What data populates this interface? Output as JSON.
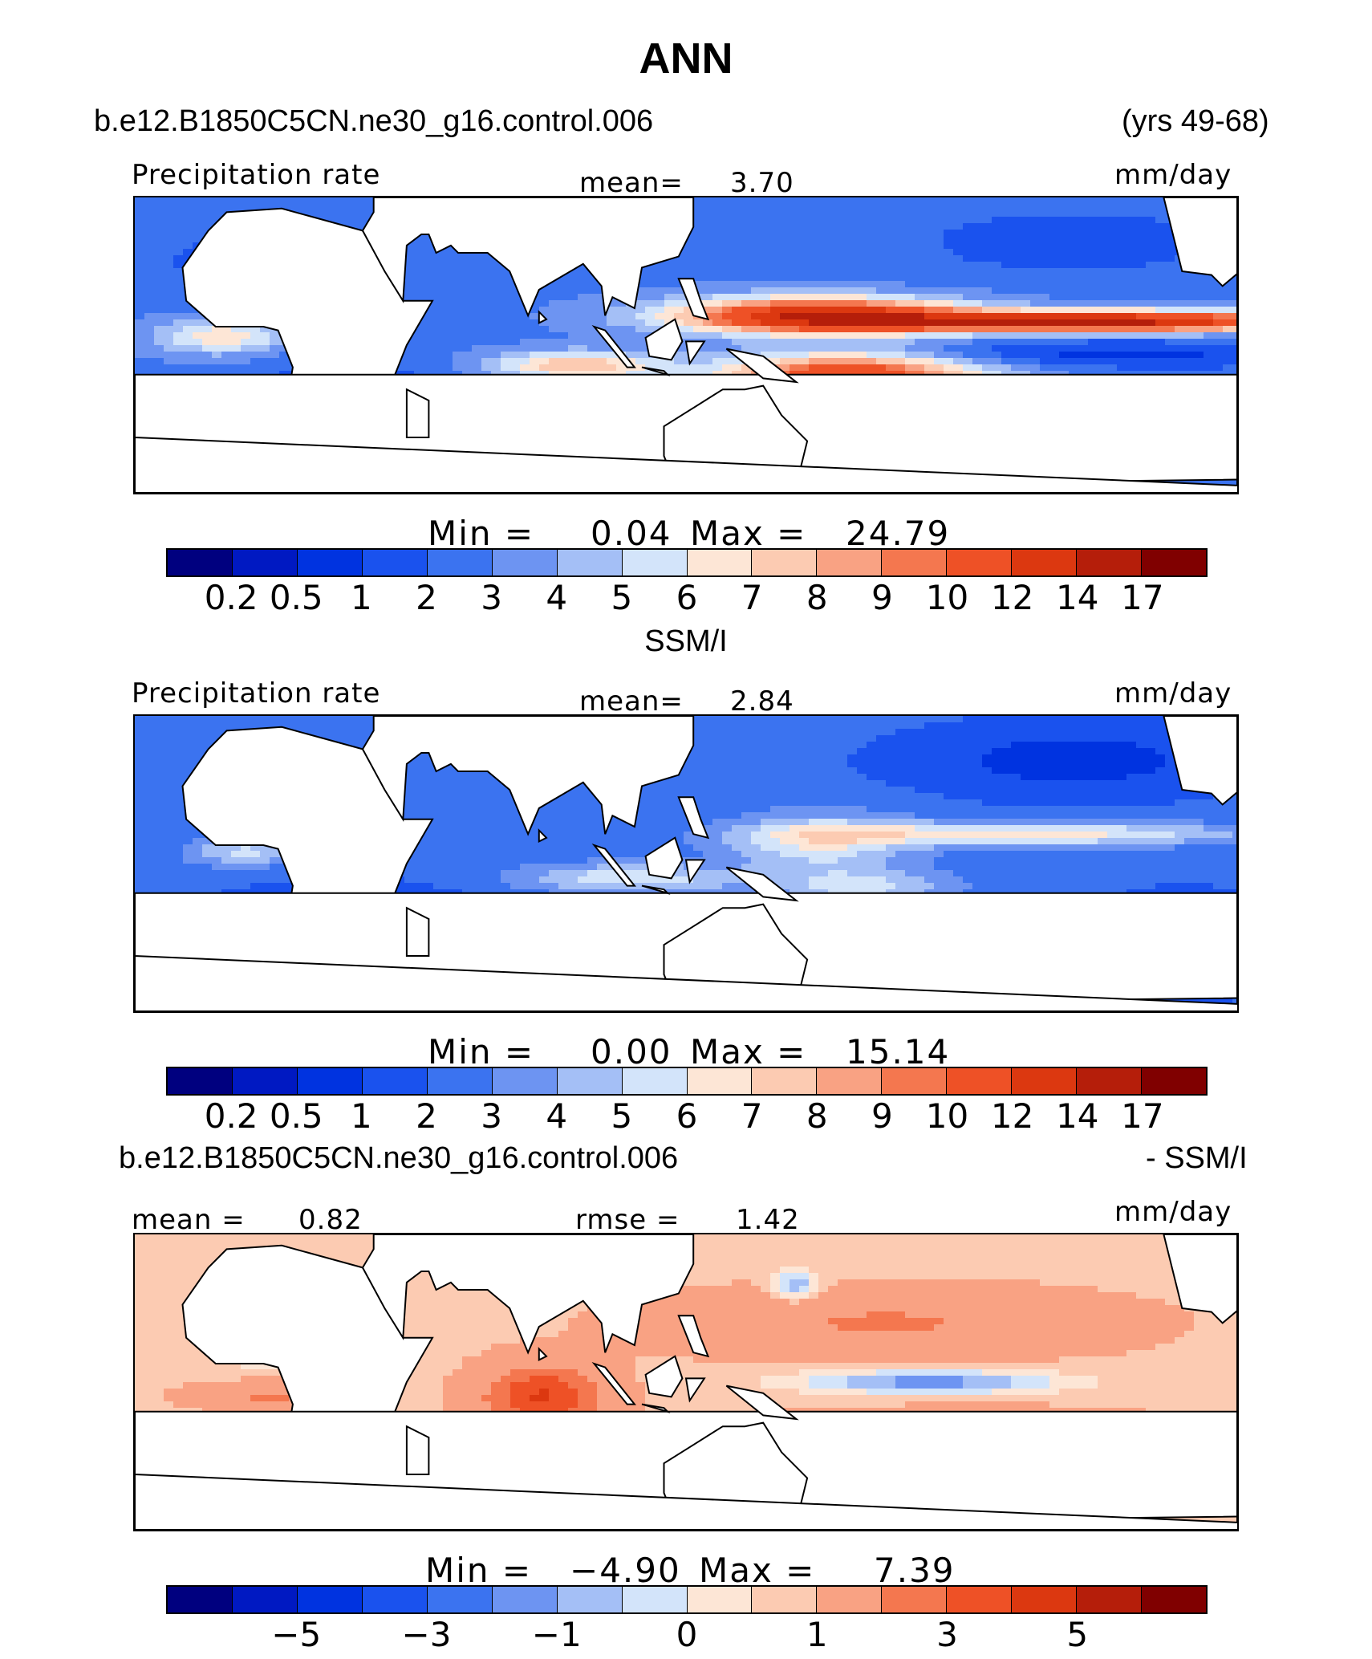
{
  "title": "ANN",
  "case_name": "b.e12.B1850C5CN.ne30_g16.control.006",
  "years": "(yrs 49-68)",
  "diff_case": "b.e12.B1850C5CN.ne30_g16.control.006",
  "diff_suffix": "- SSM/I",
  "obs_name": "SSM/I",
  "palette": [
    "#00007f",
    "#0019c2",
    "#0033e0",
    "#1a52ee",
    "#3b73f0",
    "#6d94f2",
    "#a4bff6",
    "#d3e4fa",
    "#fde6d6",
    "#fccbb2",
    "#f9a283",
    "#f4774f",
    "#ee5126",
    "#dc3810",
    "#b51e0a",
    "#800000"
  ],
  "chart_data": [
    {
      "type": "heatmap",
      "panel": "model",
      "variable": "Precipitation rate",
      "units": "mm/day",
      "mean_label": "mean=",
      "mean": "3.70",
      "min_label": "Min =",
      "min": "0.04",
      "max_label": "Max =",
      "max": "24.79",
      "levels": [
        "0.2",
        "0.5",
        "1",
        "2",
        "3",
        "4",
        "5",
        "6",
        "7",
        "8",
        "9",
        "10",
        "12",
        "14",
        "17"
      ]
    },
    {
      "type": "heatmap",
      "panel": "observations",
      "variable": "Precipitation rate",
      "units": "mm/day",
      "mean_label": "mean=",
      "mean": "2.84",
      "min_label": "Min =",
      "min": "0.00",
      "max_label": "Max =",
      "max": "15.14",
      "levels": [
        "0.2",
        "0.5",
        "1",
        "2",
        "3",
        "4",
        "5",
        "6",
        "7",
        "8",
        "9",
        "10",
        "12",
        "14",
        "17"
      ]
    },
    {
      "type": "heatmap",
      "panel": "difference",
      "units": "mm/day",
      "mean_label": "mean =",
      "mean": "0.82",
      "rmse_label": "rmse =",
      "rmse": "1.42",
      "min_label": "Min =",
      "min": "−4.90",
      "max_label": "Max =",
      "max": "7.39",
      "levels": [
        "−5",
        "−3",
        "−1",
        "0",
        "1",
        "3",
        "5"
      ],
      "level_boundaries": [
        2,
        4,
        6,
        8,
        10,
        12,
        14
      ]
    }
  ]
}
